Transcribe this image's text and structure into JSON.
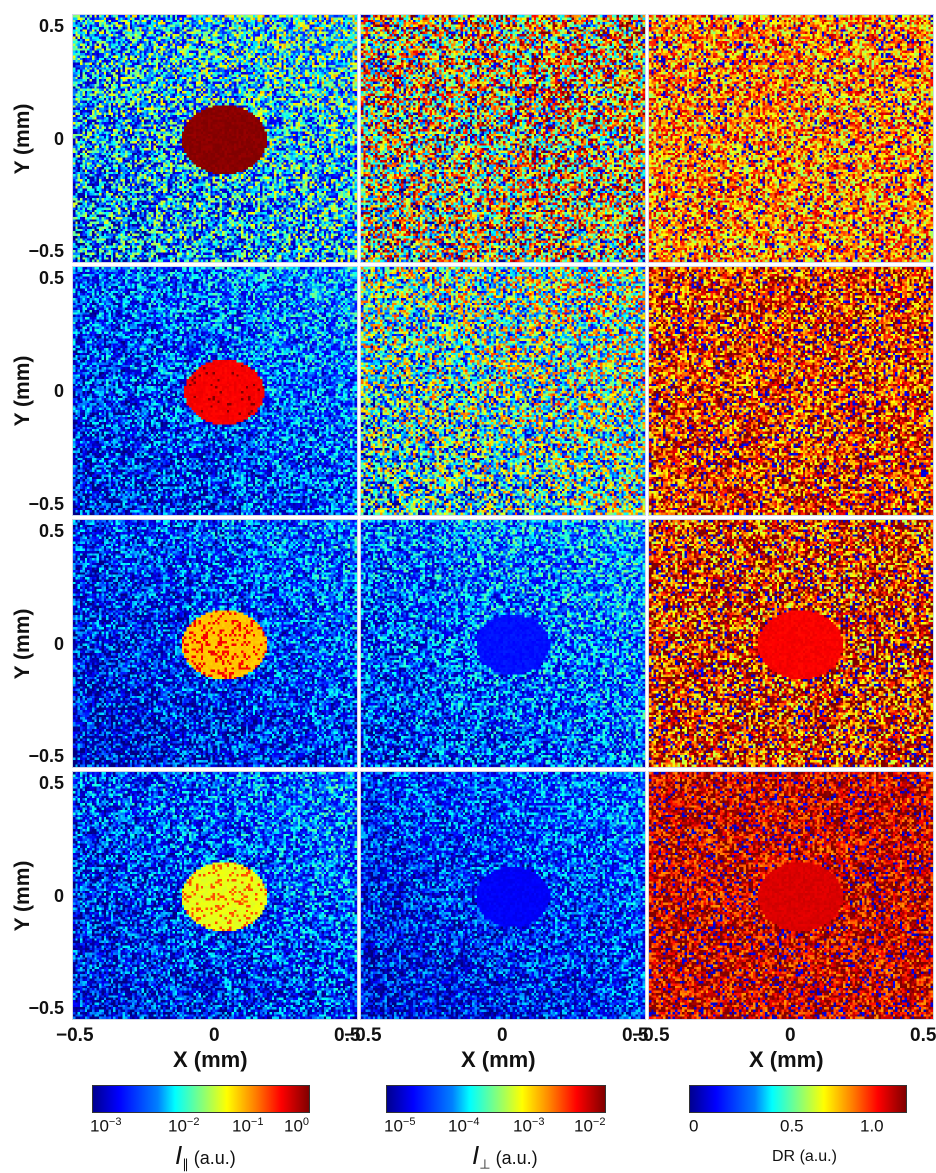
{
  "axes": {
    "y_label": "Y (mm)",
    "y_ticks": [
      "0.5",
      "0",
      "−0.5"
    ],
    "x_label": "X (mm)",
    "x_ticks": [
      "−0.5",
      "0",
      "0.5"
    ]
  },
  "colorbars": [
    {
      "label_main": "I",
      "label_sub": "∥",
      "label_unit": "(a.u.)",
      "ticks": [
        {
          "base": "10",
          "exp": "−3"
        },
        {
          "base": "10",
          "exp": "−2"
        },
        {
          "base": "10",
          "exp": "−1"
        },
        {
          "base": "10",
          "exp": "0"
        }
      ]
    },
    {
      "label_main": "I",
      "label_sub": "⊥",
      "label_unit": "(a.u.)",
      "ticks": [
        {
          "base": "10",
          "exp": "−5"
        },
        {
          "base": "10",
          "exp": "−4"
        },
        {
          "base": "10",
          "exp": "−3"
        },
        {
          "base": "10",
          "exp": "−2"
        }
      ]
    },
    {
      "label_main": "DR",
      "label_sub": "",
      "label_unit": "(a.u.)",
      "ticks": [
        {
          "base": "0",
          "exp": ""
        },
        {
          "base": "0.5",
          "exp": ""
        },
        {
          "base": "1.0",
          "exp": ""
        }
      ]
    }
  ],
  "panels": [
    {
      "row": 0,
      "col": 0,
      "base": 0.36,
      "noise": 0.3,
      "spot": {
        "level": 0.99,
        "radius": 0.15,
        "speckle": 0.0
      }
    },
    {
      "row": 0,
      "col": 1,
      "base": 0.64,
      "noise": 0.4,
      "spot": null
    },
    {
      "row": 0,
      "col": 2,
      "base": 0.73,
      "noise": 0.22,
      "spot": null
    },
    {
      "row": 1,
      "col": 0,
      "base": 0.22,
      "noise": 0.22,
      "spot": {
        "level": 0.88,
        "radius": 0.14,
        "speckle": 0.05
      }
    },
    {
      "row": 1,
      "col": 1,
      "base": 0.48,
      "noise": 0.35,
      "spot": null
    },
    {
      "row": 1,
      "col": 2,
      "base": 0.82,
      "noise": 0.25,
      "spot": null
    },
    {
      "row": 2,
      "col": 0,
      "base": 0.18,
      "noise": 0.22,
      "spot": {
        "level": 0.68,
        "radius": 0.15,
        "speckle": 0.25
      }
    },
    {
      "row": 2,
      "col": 1,
      "base": 0.25,
      "noise": 0.22,
      "spot": {
        "level": 0.14,
        "radius": 0.13,
        "speckle": 0.0
      }
    },
    {
      "row": 2,
      "col": 2,
      "base": 0.84,
      "noise": 0.3,
      "spot": {
        "level": 0.88,
        "radius": 0.15,
        "speckle": 0.0
      }
    },
    {
      "row": 3,
      "col": 0,
      "base": 0.2,
      "noise": 0.22,
      "spot": {
        "level": 0.6,
        "radius": 0.15,
        "speckle": 0.2
      }
    },
    {
      "row": 3,
      "col": 1,
      "base": 0.18,
      "noise": 0.2,
      "spot": {
        "level": 0.12,
        "radius": 0.13,
        "speckle": 0.0
      }
    },
    {
      "row": 3,
      "col": 2,
      "base": 0.9,
      "noise": 0.18,
      "spot": {
        "level": 0.91,
        "radius": 0.15,
        "speckle": 0.0
      }
    }
  ]
}
